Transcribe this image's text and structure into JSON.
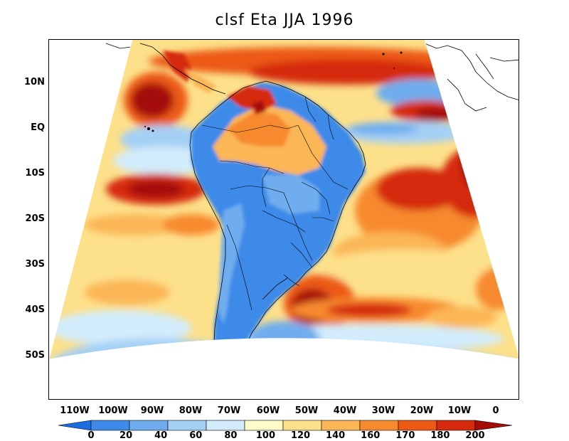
{
  "title": "clsf Eta JJA 1996",
  "map": {
    "projection": "Lambert conic (regional model domain)",
    "region": "South America and adjacent Atlantic/Pacific",
    "lat_labels": [
      "10N",
      "EQ",
      "10S",
      "20S",
      "30S",
      "40S",
      "50S"
    ],
    "lon_labels": [
      "110W",
      "100W",
      "90W",
      "80W",
      "70W",
      "60W",
      "50W",
      "40W",
      "30W",
      "20W",
      "10W",
      "0"
    ]
  },
  "colorbar": {
    "labels": [
      "0",
      "20",
      "40",
      "60",
      "80",
      "100",
      "120",
      "140",
      "160",
      "170",
      "180",
      "200"
    ],
    "colors": [
      "#1b6ee0",
      "#3d8ae8",
      "#6fadee",
      "#a5d0f5",
      "#d2ecfb",
      "#fdfbc8",
      "#fde08a",
      "#fbb657",
      "#f78a2e",
      "#ec5a14",
      "#d52a0c",
      "#a50c08"
    ]
  }
}
